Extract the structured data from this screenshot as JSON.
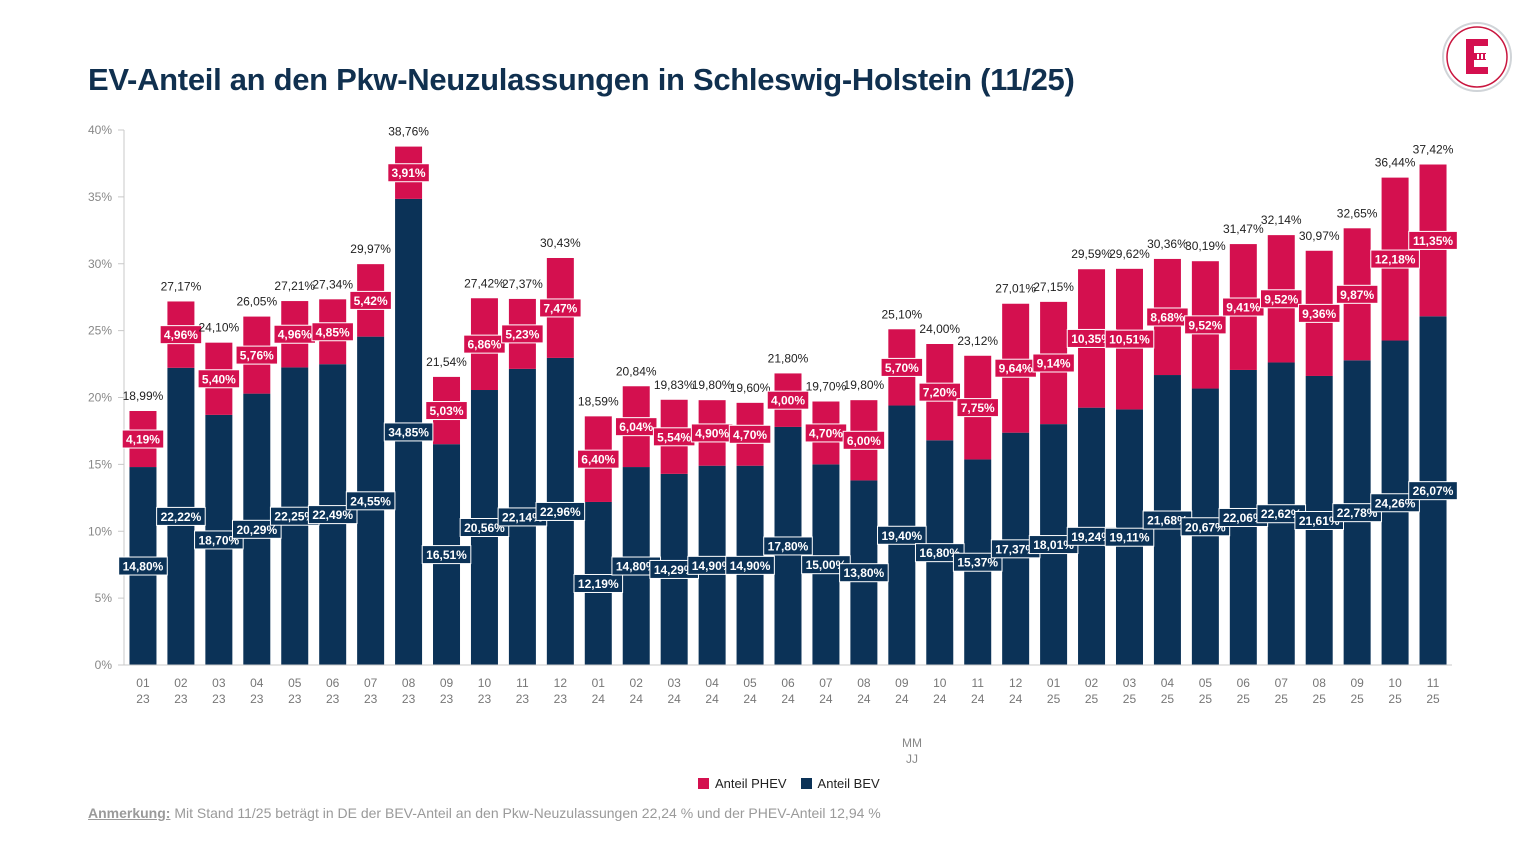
{
  "title": "EV-Anteil an den Pkw-Neuzulassungen in Schleswig-Holstein (11/25)",
  "logo_icon": "electrive-logo-icon",
  "colors": {
    "phev": "#d4104f",
    "bev": "#0b3257",
    "title": "#10304f"
  },
  "note": {
    "label": "Anmerkung:",
    "text": " Mit Stand 11/25 beträgt in DE der BEV-Anteil an den Pkw-Neuzulassungen 22,24 % und der PHEV-Anteil 12,94 %"
  },
  "legend": {
    "phev": "Anteil PHEV",
    "bev": "Anteil BEV"
  },
  "chart_data": {
    "type": "bar",
    "stacked": true,
    "title": "EV-Anteil an den Pkw-Neuzulassungen in Schleswig-Holstein (11/25)",
    "xlabel": [
      "MM",
      "JJ"
    ],
    "ylabel": "",
    "ylim": [
      0,
      40
    ],
    "yticks": [
      "0%",
      "5%",
      "10%",
      "15%",
      "20%",
      "25%",
      "30%",
      "35%",
      "40%"
    ],
    "categories": [
      [
        "01",
        "23"
      ],
      [
        "02",
        "23"
      ],
      [
        "03",
        "23"
      ],
      [
        "04",
        "23"
      ],
      [
        "05",
        "23"
      ],
      [
        "06",
        "23"
      ],
      [
        "07",
        "23"
      ],
      [
        "08",
        "23"
      ],
      [
        "09",
        "23"
      ],
      [
        "10",
        "23"
      ],
      [
        "11",
        "23"
      ],
      [
        "12",
        "23"
      ],
      [
        "01",
        "24"
      ],
      [
        "02",
        "24"
      ],
      [
        "03",
        "24"
      ],
      [
        "04",
        "24"
      ],
      [
        "05",
        "24"
      ],
      [
        "06",
        "24"
      ],
      [
        "07",
        "24"
      ],
      [
        "08",
        "24"
      ],
      [
        "09",
        "24"
      ],
      [
        "10",
        "24"
      ],
      [
        "11",
        "24"
      ],
      [
        "12",
        "24"
      ],
      [
        "01",
        "25"
      ],
      [
        "02",
        "25"
      ],
      [
        "03",
        "25"
      ],
      [
        "04",
        "25"
      ],
      [
        "05",
        "25"
      ],
      [
        "06",
        "25"
      ],
      [
        "07",
        "25"
      ],
      [
        "08",
        "25"
      ],
      [
        "09",
        "25"
      ],
      [
        "10",
        "25"
      ],
      [
        "11",
        "25"
      ]
    ],
    "series": [
      {
        "name": "Anteil BEV",
        "values": [
          14.8,
          22.22,
          18.7,
          20.29,
          22.25,
          22.49,
          24.55,
          34.85,
          16.51,
          20.56,
          22.14,
          22.96,
          12.19,
          14.8,
          14.29,
          14.9,
          14.9,
          17.8,
          15.0,
          13.8,
          19.4,
          16.8,
          15.37,
          17.37,
          18.01,
          19.24,
          19.11,
          21.68,
          20.67,
          22.06,
          22.62,
          21.61,
          22.78,
          24.26,
          26.07
        ],
        "labels": [
          "14,80%",
          "22,22%",
          "18,70%",
          "20,29%",
          "22,25%",
          "22,49%",
          "24,55%",
          "34,85%",
          "16,51%",
          "20,56%",
          "22,14%",
          "22,96%",
          "12,19%",
          "14,80%",
          "14,29%",
          "14,90%",
          "14,90%",
          "17,80%",
          "15,00%",
          "13,80%",
          "19,40%",
          "16,80%",
          "15,37%",
          "17,37%",
          "18,01%",
          "19,24%",
          "19,11%",
          "21,68%",
          "20,67%",
          "22,06%",
          "22,62%",
          "21,61%",
          "22,78%",
          "24,26%",
          "26,07%"
        ]
      },
      {
        "name": "Anteil PHEV",
        "values": [
          4.19,
          4.96,
          5.4,
          5.76,
          4.96,
          4.85,
          5.42,
          3.91,
          5.03,
          6.86,
          5.23,
          7.47,
          6.4,
          6.04,
          5.54,
          4.9,
          4.7,
          4.0,
          4.7,
          6.0,
          5.7,
          7.2,
          7.75,
          9.64,
          9.14,
          10.35,
          10.51,
          8.68,
          9.52,
          9.41,
          9.52,
          9.36,
          9.87,
          12.18,
          11.35
        ],
        "labels": [
          "4,19%",
          "4,96%",
          "5,40%",
          "5,76%",
          "4,96%",
          "4,85%",
          "5,42%",
          "3,91%",
          "5,03%",
          "6,86%",
          "5,23%",
          "7,47%",
          "6,40%",
          "6,04%",
          "5,54%",
          "4,90%",
          "4,70%",
          "4,00%",
          "4,70%",
          "6,00%",
          "5,70%",
          "7,20%",
          "7,75%",
          "9,64%",
          "9,14%",
          "10,35%",
          "10,51%",
          "8,68%",
          "9,52%",
          "9,41%",
          "9,52%",
          "9,36%",
          "9,87%",
          "12,18%",
          "11,35%"
        ]
      }
    ],
    "totals": [
      18.99,
      27.17,
      24.1,
      26.05,
      27.21,
      27.34,
      29.97,
      38.76,
      21.54,
      27.42,
      27.37,
      30.43,
      18.59,
      20.84,
      19.83,
      19.8,
      19.6,
      21.8,
      19.7,
      19.8,
      25.1,
      24.0,
      23.12,
      27.01,
      27.15,
      29.59,
      29.62,
      30.36,
      30.19,
      31.47,
      32.14,
      30.97,
      32.65,
      36.44,
      37.42
    ],
    "total_labels": [
      "18,99%",
      "27,17%",
      "24,10%",
      "26,05%",
      "27,21%",
      "27,34%",
      "29,97%",
      "38,76%",
      "21,54%",
      "27,42%",
      "27,37%",
      "30,43%",
      "18,59%",
      "20,84%",
      "19,83%",
      "19,80%",
      "19,60%",
      "21,80%",
      "19,70%",
      "19,80%",
      "25,10%",
      "24,00%",
      "23,12%",
      "27,01%",
      "27,15%",
      "29,59%",
      "29,62%",
      "30,36%",
      "30,19%",
      "31,47%",
      "32,14%",
      "30,97%",
      "32,65%",
      "36,44%",
      "37,42%"
    ],
    "legend_position": "bottom-center"
  }
}
